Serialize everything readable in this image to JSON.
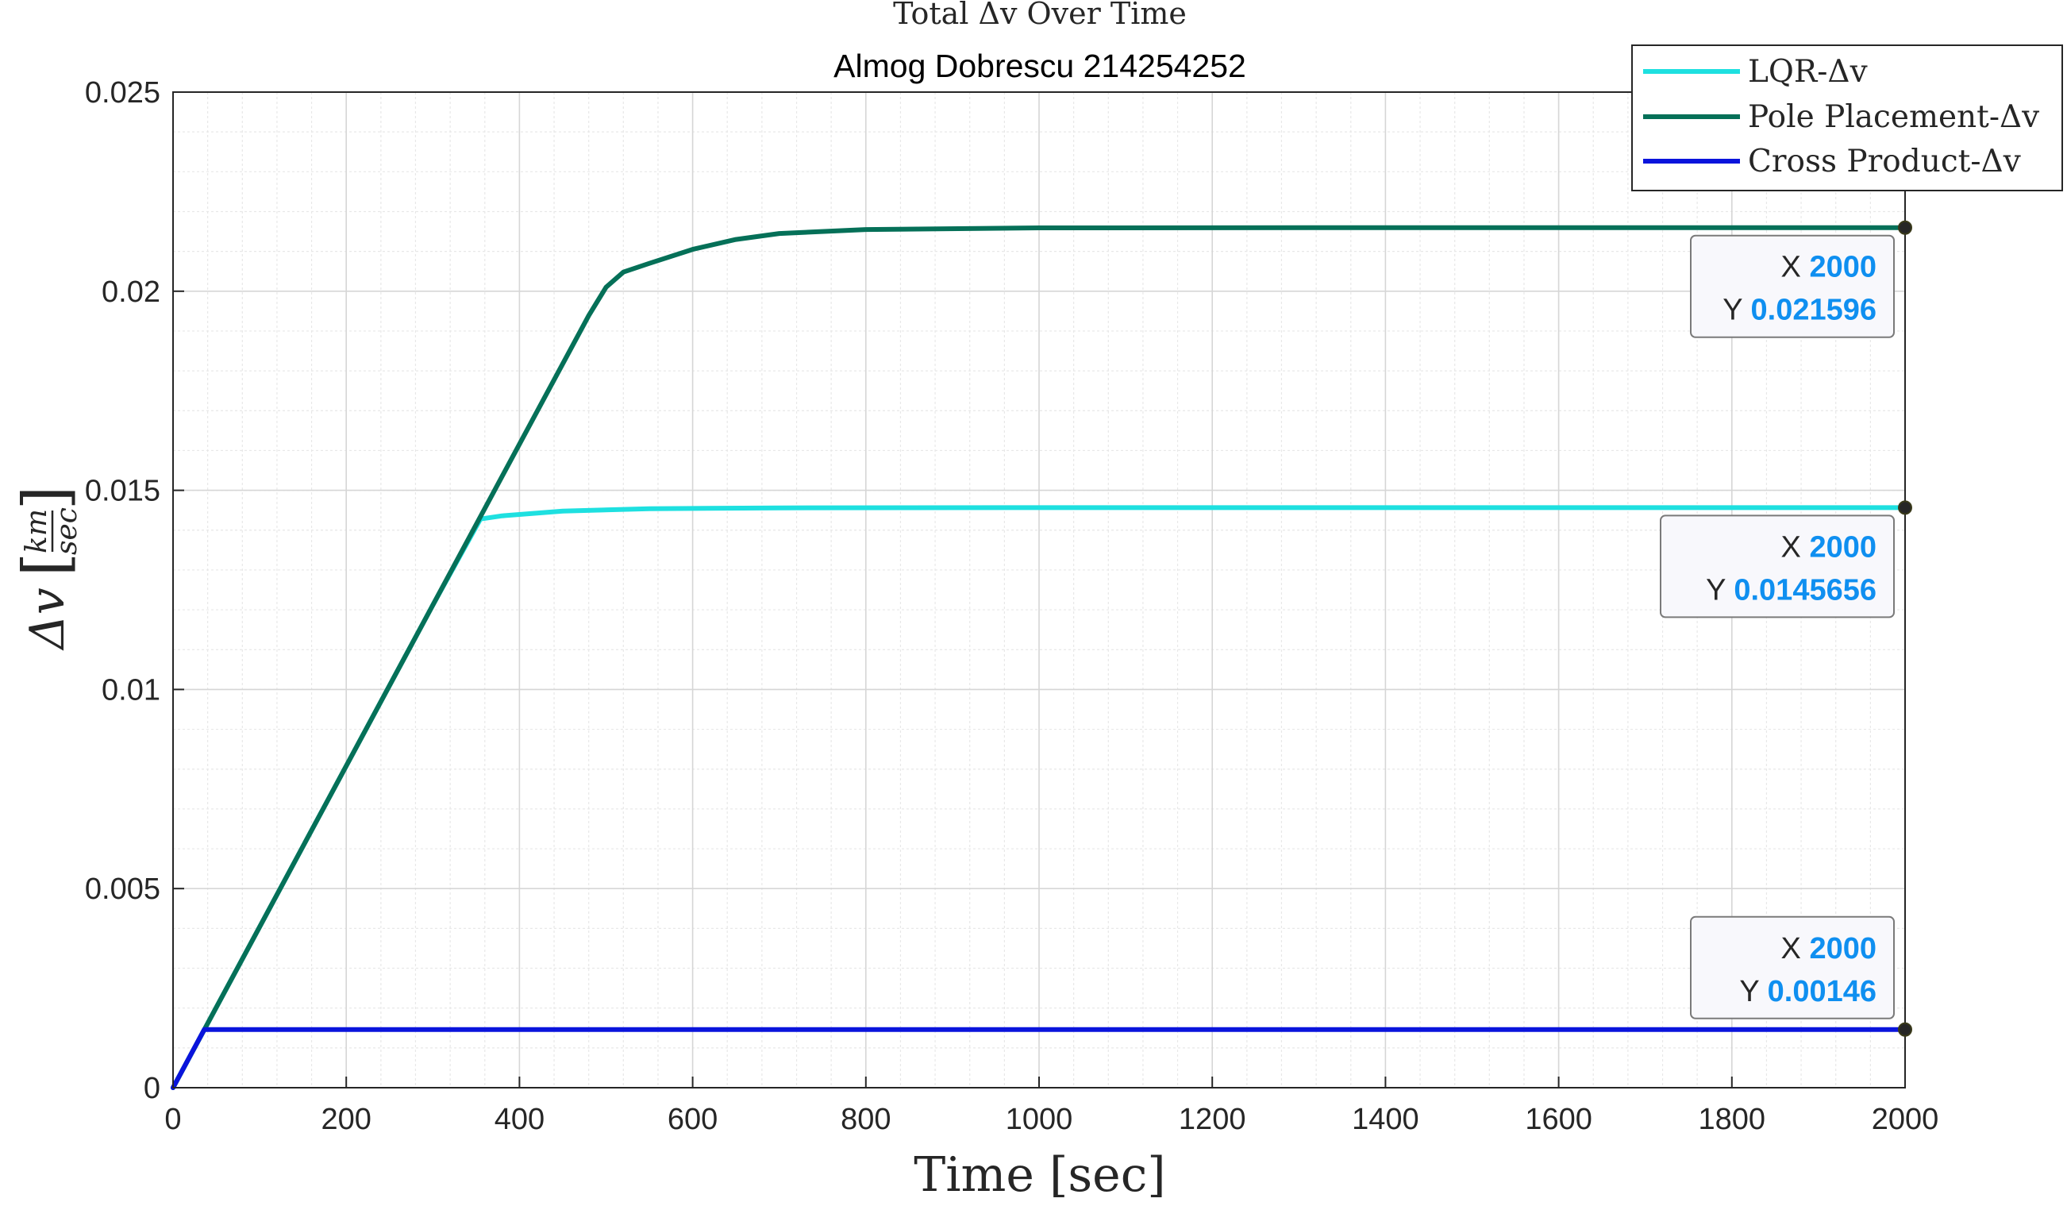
{
  "chart_data": {
    "type": "line",
    "title": "Total Δv Over Time",
    "subtitle": "Almog Dobrescu 214254252",
    "xlabel": "Time [sec]",
    "ylabel": "Δv",
    "ylabel_unit_num": "km",
    "ylabel_unit_den": "sec",
    "xlim": [
      0,
      2000
    ],
    "ylim": [
      0,
      0.025
    ],
    "xticks": [
      0,
      200,
      400,
      600,
      800,
      1000,
      1200,
      1400,
      1600,
      1800,
      2000
    ],
    "xtick_labels": [
      "0",
      "200",
      "400",
      "600",
      "800",
      "1000",
      "1200",
      "1400",
      "1600",
      "1800",
      "2000"
    ],
    "yticks": [
      0,
      0.005,
      0.01,
      0.015,
      0.02,
      0.025
    ],
    "ytick_labels": [
      "0",
      "0.005",
      "0.01",
      "0.015",
      "0.02",
      "0.025"
    ],
    "grid": true,
    "minor_grid": true,
    "legend_position": "top-right",
    "series": [
      {
        "name": "LQR-Δv",
        "color": "#1ee0e0",
        "x": [
          0,
          100,
          200,
          300,
          355,
          380,
          450,
          550,
          700,
          1000,
          1500,
          2000
        ],
        "y": [
          0,
          0.00404,
          0.00808,
          0.01212,
          0.01428,
          0.01436,
          0.01448,
          0.01454,
          0.01456,
          0.014565,
          0.014565,
          0.0145656
        ]
      },
      {
        "name": "Pole Placement-Δv",
        "color": "#057058",
        "x": [
          0,
          100,
          200,
          300,
          400,
          480,
          500,
          520,
          550,
          600,
          650,
          700,
          800,
          1000,
          1500,
          2000
        ],
        "y": [
          0,
          0.00404,
          0.00808,
          0.01212,
          0.01616,
          0.01939,
          0.0201,
          0.02048,
          0.0207,
          0.02105,
          0.0213,
          0.02145,
          0.02155,
          0.02159,
          0.021596,
          0.021596
        ]
      },
      {
        "name": "Cross Product-Δv",
        "color": "#0a14dc",
        "x": [
          0,
          36,
          100,
          500,
          1000,
          1500,
          2000
        ],
        "y": [
          0,
          0.00146,
          0.00146,
          0.00146,
          0.00146,
          0.00146,
          0.00146
        ]
      }
    ],
    "datatips": [
      {
        "series": "Pole Placement-Δv",
        "x_label": "X",
        "x": "2000",
        "y_label": "Y",
        "y": "0.021596"
      },
      {
        "series": "LQR-Δv",
        "x_label": "X",
        "x": "2000",
        "y_label": "Y",
        "y": "0.0145656"
      },
      {
        "series": "Cross Product-Δv",
        "x_label": "X",
        "x": "2000",
        "y_label": "Y",
        "y": "0.00146"
      }
    ],
    "colors": {
      "datatip_value": "#0f8ff0",
      "datatip_text": "#262626",
      "grid": "#dedede",
      "axis": "#262626"
    }
  }
}
